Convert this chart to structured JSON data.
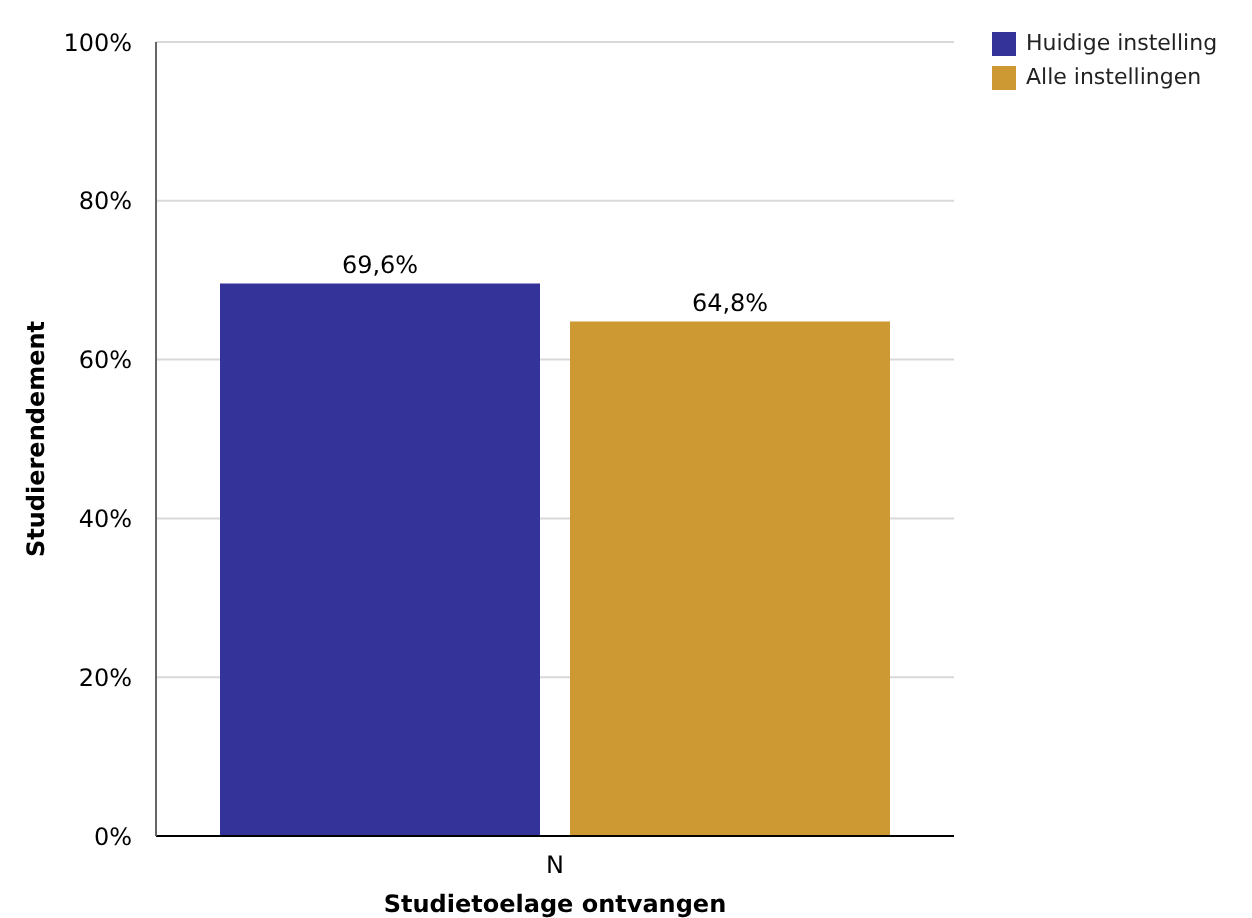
{
  "chart_data": {
    "type": "bar",
    "xlabel": "Studietoelage ontvangen",
    "ylabel": "Studierendement",
    "categories": [
      "N"
    ],
    "series": [
      {
        "name": "Huidige instelling",
        "color": "#333399",
        "values": [
          69.6
        ],
        "value_labels": [
          "69,6%"
        ]
      },
      {
        "name": "Alle instellingen",
        "color": "#cc9933",
        "values": [
          64.8
        ],
        "value_labels": [
          "64,8%"
        ]
      }
    ],
    "ylim": [
      0,
      100
    ],
    "yticks": [
      {
        "value": 0,
        "label": "0%"
      },
      {
        "value": 20,
        "label": "20%"
      },
      {
        "value": 40,
        "label": "40%"
      },
      {
        "value": 60,
        "label": "60%"
      },
      {
        "value": 80,
        "label": "80%"
      },
      {
        "value": 100,
        "label": "100%"
      }
    ],
    "grid": "y",
    "legend": "top right"
  }
}
